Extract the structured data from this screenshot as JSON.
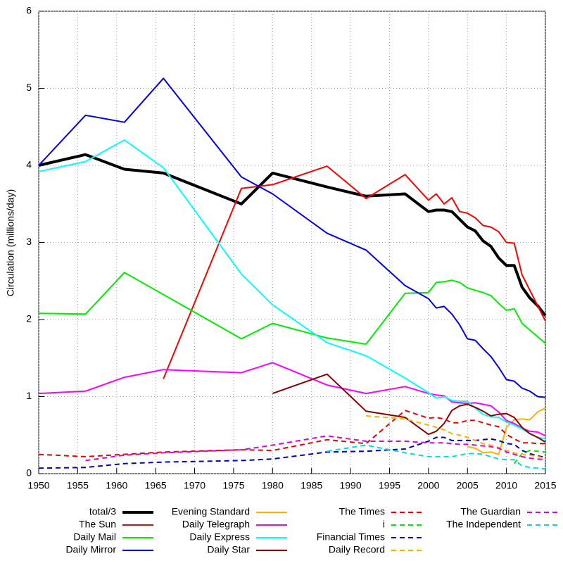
{
  "chart_data": {
    "type": "line",
    "y_label": "Circulation (millions/day)",
    "xlim": [
      1950,
      2015
    ],
    "xticks": [
      1950,
      1955,
      1960,
      1965,
      1970,
      1975,
      1980,
      1985,
      1990,
      1995,
      2000,
      2005,
      2010,
      2015
    ],
    "ylim": [
      0,
      6
    ],
    "yticks": [
      0,
      1,
      2,
      3,
      4,
      5,
      6
    ],
    "grid": true,
    "series": [
      {
        "name": "total/3",
        "color": "#000000",
        "dashed": false,
        "line_width": 4,
        "x": [
          1950,
          1956,
          1961,
          1966,
          1976,
          1980,
          1987,
          1992,
          1997,
          2000,
          2001,
          2002,
          2003,
          2004,
          2005,
          2006,
          2007,
          2008,
          2009,
          2010,
          2011,
          2012,
          2013,
          2014,
          2015
        ],
        "values": [
          4.0,
          4.14,
          3.95,
          3.9,
          3.5,
          3.9,
          3.72,
          3.6,
          3.63,
          3.4,
          3.42,
          3.42,
          3.4,
          3.3,
          3.2,
          3.15,
          3.02,
          2.95,
          2.8,
          2.7,
          2.7,
          2.42,
          2.28,
          2.18,
          2.05
        ]
      },
      {
        "name": "The Sun",
        "color": "#ff0000",
        "dashed": false,
        "line_width": 2,
        "x": [
          1966,
          1976,
          1980,
          1987,
          1992,
          1997,
          2000,
          2001,
          2002,
          2003,
          2004,
          2005,
          2006,
          2007,
          2008,
          2009,
          2010,
          2011,
          2012,
          2015
        ],
        "values": [
          1.23,
          3.7,
          3.75,
          3.99,
          3.57,
          3.88,
          3.55,
          3.63,
          3.5,
          3.58,
          3.4,
          3.38,
          3.32,
          3.22,
          3.2,
          3.14,
          3.0,
          2.99,
          2.58,
          1.98
        ]
      },
      {
        "name": "Daily Mail",
        "color": "#00ee00",
        "dashed": false,
        "line_width": 2,
        "x": [
          1950,
          1956,
          1961,
          1976,
          1980,
          1987,
          1992,
          1997,
          2000,
          2001,
          2002,
          2003,
          2004,
          2005,
          2006,
          2007,
          2008,
          2009,
          2010,
          2011,
          2012,
          2015
        ],
        "values": [
          2.08,
          2.07,
          2.61,
          1.75,
          1.95,
          1.76,
          1.68,
          2.34,
          2.35,
          2.48,
          2.49,
          2.51,
          2.48,
          2.41,
          2.38,
          2.35,
          2.31,
          2.21,
          2.12,
          2.14,
          1.95,
          1.69
        ]
      },
      {
        "name": "Daily Mirror",
        "color": "#0000ee",
        "dashed": false,
        "line_width": 2,
        "x": [
          1950,
          1956,
          1961,
          1966,
          1976,
          1980,
          1987,
          1992,
          1997,
          2000,
          2001,
          2002,
          2003,
          2004,
          2005,
          2006,
          2007,
          2008,
          2009,
          2010,
          2011,
          2012,
          2013,
          2014,
          2015
        ],
        "values": [
          4.0,
          4.65,
          4.56,
          5.13,
          3.85,
          3.63,
          3.12,
          2.9,
          2.44,
          2.27,
          2.15,
          2.17,
          2.07,
          1.93,
          1.75,
          1.73,
          1.62,
          1.52,
          1.38,
          1.22,
          1.2,
          1.11,
          1.07,
          1.0,
          0.99
        ]
      },
      {
        "name": "Evening Standard",
        "color": "#ffb000",
        "dashed": false,
        "line_width": 2,
        "x": [
          2005,
          2006,
          2007,
          2008,
          2009,
          2010,
          2011,
          2012,
          2013,
          2014,
          2015
        ],
        "values": [
          0.35,
          0.33,
          0.27,
          0.28,
          0.25,
          0.6,
          0.7,
          0.71,
          0.7,
          0.8,
          0.85
        ]
      },
      {
        "name": "Daily Telegraph",
        "color": "#ff00ff",
        "dashed": false,
        "line_width": 2,
        "x": [
          1950,
          1956,
          1961,
          1966,
          1976,
          1980,
          1987,
          1992,
          1997,
          2000,
          2001,
          2002,
          2003,
          2004,
          2005,
          2006,
          2007,
          2008,
          2009,
          2010,
          2011,
          2012,
          2013,
          2014,
          2015
        ],
        "values": [
          1.04,
          1.07,
          1.25,
          1.35,
          1.31,
          1.44,
          1.15,
          1.04,
          1.13,
          1.04,
          1.02,
          1.01,
          0.93,
          0.92,
          0.91,
          0.92,
          0.9,
          0.88,
          0.8,
          0.69,
          0.65,
          0.59,
          0.55,
          0.54,
          0.49
        ]
      },
      {
        "name": "Daily Express",
        "color": "#00ffff",
        "dashed": false,
        "line_width": 2,
        "x": [
          1950,
          1956,
          1961,
          1966,
          1976,
          1980,
          1987,
          1992,
          1997,
          2000,
          2001,
          2002,
          2003,
          2004,
          2005,
          2006,
          2007,
          2008,
          2009,
          2010,
          2011,
          2012,
          2013,
          2014,
          2015
        ],
        "values": [
          3.92,
          4.05,
          4.33,
          3.97,
          2.59,
          2.19,
          1.7,
          1.53,
          1.24,
          1.05,
          0.98,
          1.0,
          0.95,
          0.94,
          0.94,
          0.85,
          0.77,
          0.74,
          0.73,
          0.67,
          0.63,
          0.58,
          0.52,
          0.47,
          0.45
        ]
      },
      {
        "name": "Daily Star",
        "color": "#8b0000",
        "dashed": false,
        "line_width": 2,
        "x": [
          1980,
          1987,
          1992,
          1997,
          2000,
          2001,
          2002,
          2003,
          2004,
          2005,
          2006,
          2007,
          2008,
          2009,
          2010,
          2011,
          2012,
          2013,
          2014,
          2015
        ],
        "values": [
          1.04,
          1.29,
          0.81,
          0.73,
          0.51,
          0.55,
          0.65,
          0.82,
          0.88,
          0.9,
          0.86,
          0.81,
          0.75,
          0.77,
          0.78,
          0.73,
          0.6,
          0.52,
          0.47,
          0.41
        ]
      },
      {
        "name": "The Times",
        "color": "#ee0000",
        "dashed": true,
        "line_width": 2,
        "x": [
          1950,
          1956,
          1961,
          1966,
          1976,
          1980,
          1987,
          1992,
          1997,
          2000,
          2001,
          2002,
          2003,
          2004,
          2005,
          2006,
          2007,
          2008,
          2009,
          2010,
          2011,
          2012,
          2013,
          2014,
          2015
        ],
        "values": [
          0.25,
          0.22,
          0.25,
          0.28,
          0.31,
          0.3,
          0.44,
          0.39,
          0.82,
          0.72,
          0.73,
          0.71,
          0.66,
          0.66,
          0.69,
          0.69,
          0.66,
          0.63,
          0.61,
          0.51,
          0.45,
          0.4,
          0.4,
          0.39,
          0.39
        ]
      },
      {
        "name": "i",
        "color": "#00ee00",
        "dashed": true,
        "line_width": 2,
        "x": [
          2011,
          2012,
          2013,
          2014,
          2015
        ],
        "values": [
          0.13,
          0.26,
          0.3,
          0.29,
          0.28
        ]
      },
      {
        "name": "Financial Times",
        "color": "#0000cc",
        "dashed": true,
        "line_width": 2,
        "x": [
          1950,
          1956,
          1961,
          1966,
          1976,
          1980,
          1987,
          1992,
          1997,
          2000,
          2001,
          2002,
          2003,
          2004,
          2005,
          2006,
          2007,
          2008,
          2009,
          2010,
          2011,
          2012,
          2013,
          2014,
          2015
        ],
        "values": [
          0.07,
          0.08,
          0.13,
          0.15,
          0.17,
          0.19,
          0.28,
          0.29,
          0.32,
          0.42,
          0.47,
          0.47,
          0.43,
          0.43,
          0.43,
          0.43,
          0.44,
          0.45,
          0.43,
          0.39,
          0.38,
          0.3,
          0.26,
          0.23,
          0.21
        ]
      },
      {
        "name": "Daily Record",
        "color": "#ffb000",
        "dashed": true,
        "line_width": 2,
        "x": [
          1992,
          1997,
          2000,
          2001,
          2002,
          2003,
          2004,
          2005,
          2006,
          2007,
          2008,
          2009,
          2010,
          2011,
          2012,
          2013,
          2014,
          2015
        ],
        "values": [
          0.75,
          0.71,
          0.63,
          0.6,
          0.57,
          0.52,
          0.5,
          0.47,
          0.43,
          0.39,
          0.37,
          0.34,
          0.3,
          0.27,
          0.25,
          0.24,
          0.22,
          0.2
        ]
      },
      {
        "name": "The Guardian",
        "color": "#dd00dd",
        "dashed": true,
        "line_width": 2,
        "x": [
          1956,
          1961,
          1966,
          1976,
          1980,
          1987,
          1992,
          1997,
          2000,
          2001,
          2002,
          2003,
          2004,
          2005,
          2006,
          2007,
          2008,
          2009,
          2010,
          2011,
          2012,
          2013,
          2014,
          2015
        ],
        "values": [
          0.17,
          0.24,
          0.27,
          0.31,
          0.37,
          0.49,
          0.42,
          0.42,
          0.4,
          0.4,
          0.4,
          0.39,
          0.38,
          0.38,
          0.37,
          0.36,
          0.35,
          0.33,
          0.28,
          0.25,
          0.22,
          0.2,
          0.19,
          0.18
        ]
      },
      {
        "name": "The Independent",
        "color": "#00dddd",
        "dashed": true,
        "line_width": 2,
        "x": [
          1987,
          1992,
          1997,
          2000,
          2001,
          2002,
          2003,
          2004,
          2005,
          2006,
          2007,
          2008,
          2009,
          2010,
          2011,
          2012,
          2013,
          2014,
          2015
        ],
        "values": [
          0.29,
          0.37,
          0.27,
          0.22,
          0.22,
          0.22,
          0.22,
          0.24,
          0.26,
          0.26,
          0.25,
          0.22,
          0.19,
          0.18,
          0.18,
          0.1,
          0.08,
          0.07,
          0.06
        ]
      }
    ]
  }
}
